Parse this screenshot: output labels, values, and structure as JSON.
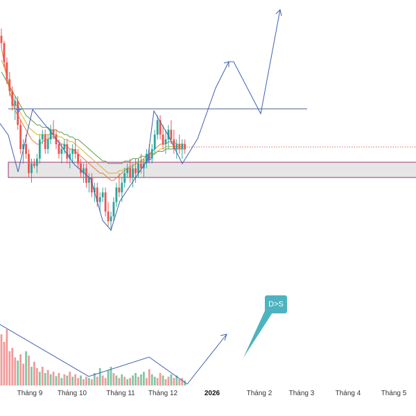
{
  "chart_data": {
    "type": "candlestick",
    "x_ticks": [
      "Tháng 9",
      "Tháng 10",
      "Tháng 11",
      "Tháng 12",
      "2026",
      "Tháng 2",
      "Tháng 3",
      "Tháng 4",
      "Tháng 5"
    ],
    "price_ylim": [
      40,
      135
    ],
    "candles": [
      [
        123,
        126,
        118,
        120
      ],
      [
        120,
        121,
        110,
        112
      ],
      [
        112,
        114,
        103,
        105
      ],
      [
        105,
        108,
        98,
        100
      ],
      [
        100,
        102,
        92,
        94
      ],
      [
        94,
        98,
        88,
        96
      ],
      [
        96,
        98,
        84,
        86
      ],
      [
        86,
        88,
        74,
        76
      ],
      [
        76,
        80,
        70,
        78
      ],
      [
        78,
        82,
        72,
        74
      ],
      [
        74,
        76,
        64,
        66
      ],
      [
        66,
        72,
        62,
        70
      ],
      [
        70,
        72,
        68,
        69
      ],
      [
        69,
        74,
        66,
        72
      ],
      [
        72,
        82,
        70,
        80
      ],
      [
        80,
        84,
        78,
        82
      ],
      [
        82,
        84,
        74,
        76
      ],
      [
        76,
        82,
        74,
        80
      ],
      [
        80,
        86,
        78,
        84
      ],
      [
        84,
        88,
        80,
        82
      ],
      [
        82,
        84,
        76,
        78
      ],
      [
        78,
        80,
        72,
        74
      ],
      [
        74,
        78,
        70,
        76
      ],
      [
        76,
        80,
        74,
        78
      ],
      [
        78,
        80,
        70,
        72
      ],
      [
        72,
        76,
        68,
        74
      ],
      [
        74,
        78,
        70,
        76
      ],
      [
        76,
        80,
        72,
        74
      ],
      [
        74,
        76,
        68,
        70
      ],
      [
        70,
        72,
        64,
        66
      ],
      [
        66,
        70,
        62,
        68
      ],
      [
        68,
        70,
        60,
        62
      ],
      [
        62,
        66,
        58,
        64
      ],
      [
        64,
        66,
        56,
        58
      ],
      [
        58,
        62,
        54,
        60
      ],
      [
        60,
        62,
        52,
        54
      ],
      [
        54,
        58,
        50,
        56
      ],
      [
        56,
        60,
        54,
        58
      ],
      [
        58,
        60,
        48,
        50
      ],
      [
        50,
        54,
        44,
        46
      ],
      [
        46,
        50,
        42,
        48
      ],
      [
        48,
        56,
        46,
        54
      ],
      [
        54,
        62,
        52,
        60
      ],
      [
        60,
        66,
        56,
        58
      ],
      [
        58,
        64,
        54,
        62
      ],
      [
        62,
        68,
        60,
        66
      ],
      [
        66,
        70,
        64,
        68
      ],
      [
        68,
        72,
        62,
        64
      ],
      [
        64,
        70,
        60,
        68
      ],
      [
        68,
        72,
        62,
        66
      ],
      [
        66,
        72,
        64,
        70
      ],
      [
        70,
        74,
        66,
        68
      ],
      [
        68,
        72,
        64,
        70
      ],
      [
        70,
        76,
        68,
        74
      ],
      [
        74,
        78,
        70,
        72
      ],
      [
        72,
        78,
        70,
        76
      ],
      [
        76,
        84,
        74,
        82
      ],
      [
        82,
        90,
        80,
        88
      ],
      [
        88,
        90,
        80,
        82
      ],
      [
        82,
        86,
        76,
        78
      ],
      [
        78,
        84,
        74,
        80
      ],
      [
        80,
        86,
        76,
        84
      ],
      [
        84,
        88,
        78,
        80
      ],
      [
        80,
        84,
        74,
        76
      ],
      [
        76,
        80,
        72,
        78
      ],
      [
        78,
        82,
        74,
        76
      ],
      [
        76,
        80,
        72,
        78
      ],
      [
        78,
        80,
        74,
        76
      ]
    ],
    "ma_series": [
      {
        "color": "#e07b39",
        "values": [
          118,
          112,
          106,
          100,
          96,
          92,
          90,
          88,
          86,
          84,
          82,
          80,
          79,
          78,
          78,
          79,
          80,
          80,
          81,
          81,
          80,
          79,
          78,
          78,
          77,
          76,
          76,
          75,
          74,
          73,
          72,
          71,
          70,
          69,
          68,
          67,
          66,
          66,
          65,
          64,
          63,
          63,
          64,
          65,
          66,
          67,
          68,
          68,
          69,
          70,
          71,
          71,
          72,
          73,
          74,
          75,
          76,
          77,
          78,
          78,
          78,
          79,
          79,
          79,
          78,
          78,
          78,
          78
        ]
      },
      {
        "color": "#d4b32e",
        "values": [
          113,
          110,
          106,
          102,
          98,
          95,
          93,
          91,
          89,
          87,
          85,
          84,
          83,
          82,
          82,
          82,
          82,
          82,
          82,
          82,
          82,
          81,
          81,
          80,
          80,
          79,
          79,
          78,
          77,
          76,
          75,
          74,
          73,
          72,
          71,
          70,
          69,
          68,
          67,
          66,
          66,
          66,
          66,
          67,
          67,
          68,
          68,
          69,
          69,
          70,
          70,
          71,
          71,
          72,
          72,
          73,
          74,
          75,
          76,
          76,
          77,
          77,
          77,
          77,
          77,
          77,
          77,
          77
        ]
      },
      {
        "color": "#5a9b4a",
        "values": [
          108,
          106,
          104,
          102,
          100,
          98,
          96,
          94,
          92,
          90,
          89,
          88,
          87,
          86,
          86,
          85,
          85,
          85,
          84,
          84,
          84,
          83,
          83,
          82,
          82,
          81,
          81,
          80,
          80,
          79,
          78,
          77,
          76,
          75,
          74,
          73,
          72,
          71,
          71,
          70,
          70,
          70,
          70,
          70,
          70,
          71,
          71,
          71,
          72,
          72,
          72,
          73,
          73,
          73,
          74,
          74,
          74,
          75,
          75,
          75,
          76,
          76,
          76,
          76,
          76,
          76,
          76,
          76
        ]
      }
    ],
    "volume_ylim": [
      0,
      100
    ],
    "volumes": [
      [
        82,
        "down"
      ],
      [
        70,
        "down"
      ],
      [
        90,
        "down"
      ],
      [
        55,
        "down"
      ],
      [
        60,
        "down"
      ],
      [
        45,
        "down"
      ],
      [
        40,
        "up"
      ],
      [
        50,
        "down"
      ],
      [
        35,
        "down"
      ],
      [
        55,
        "up"
      ],
      [
        48,
        "down"
      ],
      [
        30,
        "up"
      ],
      [
        38,
        "down"
      ],
      [
        28,
        "down"
      ],
      [
        22,
        "up"
      ],
      [
        30,
        "down"
      ],
      [
        20,
        "up"
      ],
      [
        25,
        "down"
      ],
      [
        18,
        "up"
      ],
      [
        22,
        "down"
      ],
      [
        15,
        "up"
      ],
      [
        20,
        "down"
      ],
      [
        12,
        "up"
      ],
      [
        18,
        "down"
      ],
      [
        16,
        "up"
      ],
      [
        22,
        "down"
      ],
      [
        14,
        "up"
      ],
      [
        18,
        "down"
      ],
      [
        12,
        "down"
      ],
      [
        16,
        "up"
      ],
      [
        10,
        "down"
      ],
      [
        14,
        "down"
      ],
      [
        12,
        "up"
      ],
      [
        10,
        "down"
      ],
      [
        20,
        "up"
      ],
      [
        14,
        "down"
      ],
      [
        28,
        "up"
      ],
      [
        16,
        "down"
      ],
      [
        12,
        "down"
      ],
      [
        24,
        "up"
      ],
      [
        30,
        "up"
      ],
      [
        20,
        "down"
      ],
      [
        16,
        "up"
      ],
      [
        12,
        "down"
      ],
      [
        18,
        "up"
      ],
      [
        14,
        "down"
      ],
      [
        10,
        "up"
      ],
      [
        12,
        "down"
      ],
      [
        16,
        "up"
      ],
      [
        20,
        "up"
      ],
      [
        14,
        "down"
      ],
      [
        18,
        "up"
      ],
      [
        22,
        "up"
      ],
      [
        12,
        "down"
      ],
      [
        26,
        "down"
      ],
      [
        18,
        "up"
      ],
      [
        14,
        "up"
      ],
      [
        12,
        "down"
      ],
      [
        20,
        "down"
      ],
      [
        16,
        "up"
      ],
      [
        10,
        "down"
      ],
      [
        14,
        "down"
      ],
      [
        18,
        "up"
      ],
      [
        12,
        "down"
      ],
      [
        16,
        "up"
      ],
      [
        10,
        "down"
      ],
      [
        12,
        "down"
      ],
      [
        8,
        "up"
      ]
    ],
    "callout": {
      "text": "D>S",
      "color": "#4db3c0"
    },
    "colors": {
      "up": "#26a69a",
      "down": "#ef5350",
      "projection": "#3f5fb2",
      "resistance": "#4a5e8c",
      "zone_border": "#a0307a",
      "zone_fill": "#e6e6e6",
      "dotted_price": "#d86464"
    }
  }
}
